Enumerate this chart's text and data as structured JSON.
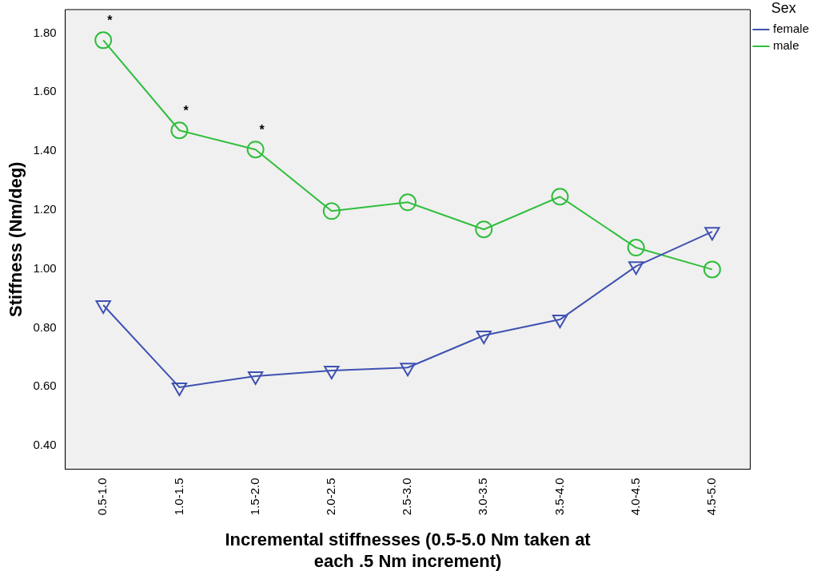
{
  "chart_data": {
    "type": "line",
    "xlabel": "Incremental stiffnesses (0.5-5.0 Nm taken at each .5 Nm increment)",
    "ylabel": "Stiffness (Nm/deg)",
    "legend_title": "Sex",
    "categories": [
      "0.5-1.0",
      "1.0-1.5",
      "1.5-2.0",
      "2.0-2.5",
      "2.5-3.0",
      "3.0-3.5",
      "3.5-4.0",
      "4.0-4.5",
      "4.5-5.0"
    ],
    "series": [
      {
        "name": "female",
        "color": "#3f51b1",
        "marker": "triangle",
        "values": [
          0.877,
          0.598,
          0.636,
          0.655,
          0.665,
          0.774,
          0.828,
          1.009,
          1.126
        ]
      },
      {
        "name": "male",
        "color": "#2fbe3c",
        "marker": "circle",
        "values": [
          1.776,
          1.47,
          1.405,
          1.196,
          1.226,
          1.134,
          1.245,
          1.072,
          0.998
        ]
      }
    ],
    "ylim": [
      0.32,
      1.88
    ],
    "yticks": [
      {
        "value": 0.4,
        "label": "0.40"
      },
      {
        "value": 0.6,
        "label": "0.60"
      },
      {
        "value": 0.8,
        "label": "0.80"
      },
      {
        "value": 1.0,
        "label": "1.00"
      },
      {
        "value": 1.2,
        "label": "1.20"
      },
      {
        "value": 1.4,
        "label": "1.40"
      },
      {
        "value": 1.6,
        "label": "1.60"
      },
      {
        "value": 1.8,
        "label": "1.80"
      }
    ],
    "annotations": [
      {
        "text": "*",
        "x": "0.5-1.0",
        "y": 1.776
      },
      {
        "text": "*",
        "x": "1.0-1.5",
        "y": 1.47
      },
      {
        "text": "*",
        "x": "1.5-2.0",
        "y": 1.405
      }
    ],
    "grid": false,
    "legend": "top right",
    "line_style": "solid"
  }
}
